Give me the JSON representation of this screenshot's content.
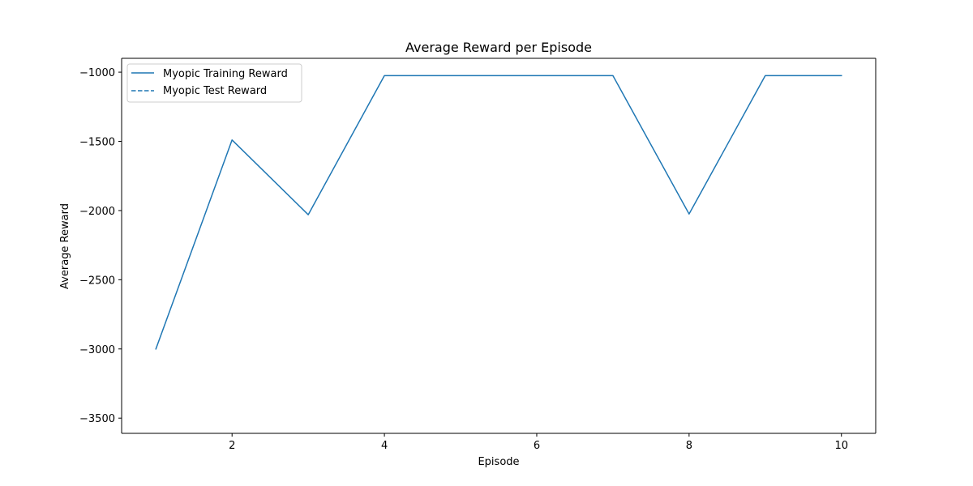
{
  "chart_data": {
    "type": "line",
    "title": "Average Reward per Episode",
    "xlabel": "Episode",
    "ylabel": "Average Reward",
    "xlim": [
      0.55,
      10.45
    ],
    "ylim": [
      -3610,
      -900
    ],
    "x_ticks": [
      2,
      4,
      6,
      8,
      10
    ],
    "y_ticks": [
      -1000,
      -1500,
      -2000,
      -2500,
      -3000,
      -3500
    ],
    "x_tick_labels": [
      "2",
      "4",
      "6",
      "8",
      "10"
    ],
    "y_tick_labels": [
      "−1000",
      "−1500",
      "−2000",
      "−2500",
      "−3000",
      "−3500"
    ],
    "grid": false,
    "legend_position": "upper left",
    "series": [
      {
        "name": "Myopic Training Reward",
        "style": "solid",
        "color": "#1f77b4",
        "x": [
          1,
          2,
          3,
          4,
          5,
          6,
          7,
          8,
          9,
          10
        ],
        "y": [
          -3000,
          -1490,
          -2030,
          -1025,
          -1025,
          -1025,
          -1025,
          -2025,
          -1025,
          -1025
        ]
      },
      {
        "name": "Myopic Test Reward",
        "style": "dashed",
        "color": "#1f77b4",
        "x": [],
        "y": []
      }
    ]
  }
}
